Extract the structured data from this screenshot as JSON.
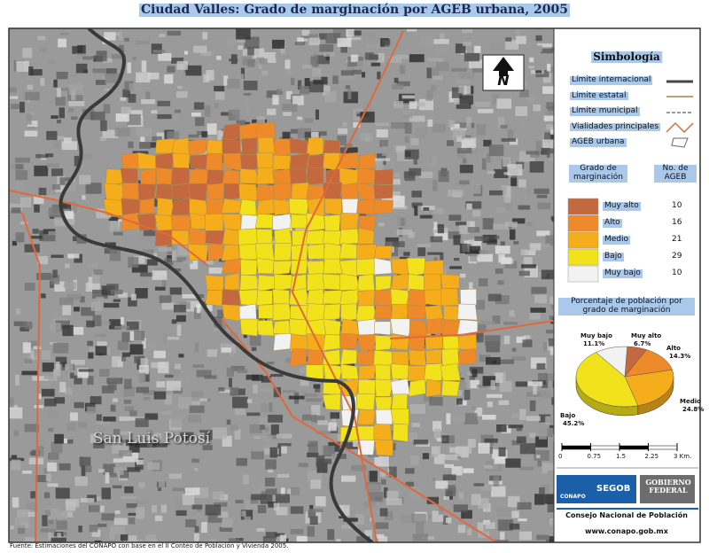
{
  "title": "Ciudad Valles: Grado de marginación por AGEB urbana, 2005",
  "map": {
    "place_label": "San Luis Potosí",
    "north_label": "N"
  },
  "legend": {
    "title": "Simbología",
    "items": [
      "Límite internacional",
      "Límite estatal",
      "Límite municipal",
      "Vialidades principales",
      "AGEB urbana"
    ]
  },
  "marginacion": {
    "headers": [
      "Grado de marginación",
      "No. de AGEB"
    ],
    "rows": [
      {
        "label": "Muy alto",
        "count": 10,
        "color": "#c4693f"
      },
      {
        "label": "Alto",
        "count": 16,
        "color": "#ee8a2a"
      },
      {
        "label": "Medio",
        "count": 21,
        "color": "#f6ad1c"
      },
      {
        "label": "Bajo",
        "count": 29,
        "color": "#f2e21c"
      },
      {
        "label": "Muy bajo",
        "count": 10,
        "color": "#f2f2f2"
      }
    ]
  },
  "pie": {
    "type": "pie",
    "title": "Porcentaje de población por grado de marginación",
    "categories": [
      "Muy alto",
      "Alto",
      "Medio",
      "Bajo",
      "Muy bajo"
    ],
    "values": [
      6.7,
      14.3,
      24.8,
      45.2,
      11.1
    ],
    "value_labels": [
      "6.7%",
      "14.3%",
      "24.8%",
      "45.2%",
      "11.1%"
    ]
  },
  "scale": {
    "ticks": [
      0,
      0.75,
      1.5,
      2.25,
      {
        "value": 3,
        "label": "3 Km."
      }
    ]
  },
  "credits": {
    "logo1": "CONAPO",
    "logo2": "SEGOB",
    "logo3": "GOBIERNO FEDERAL",
    "institution": "Consejo Nacional de Población",
    "url": "www.conapo.gob.mx"
  },
  "source": "Fuente: Estimaciones del CONAPO con base en el II Conteo de Población y Vivienda 2005."
}
